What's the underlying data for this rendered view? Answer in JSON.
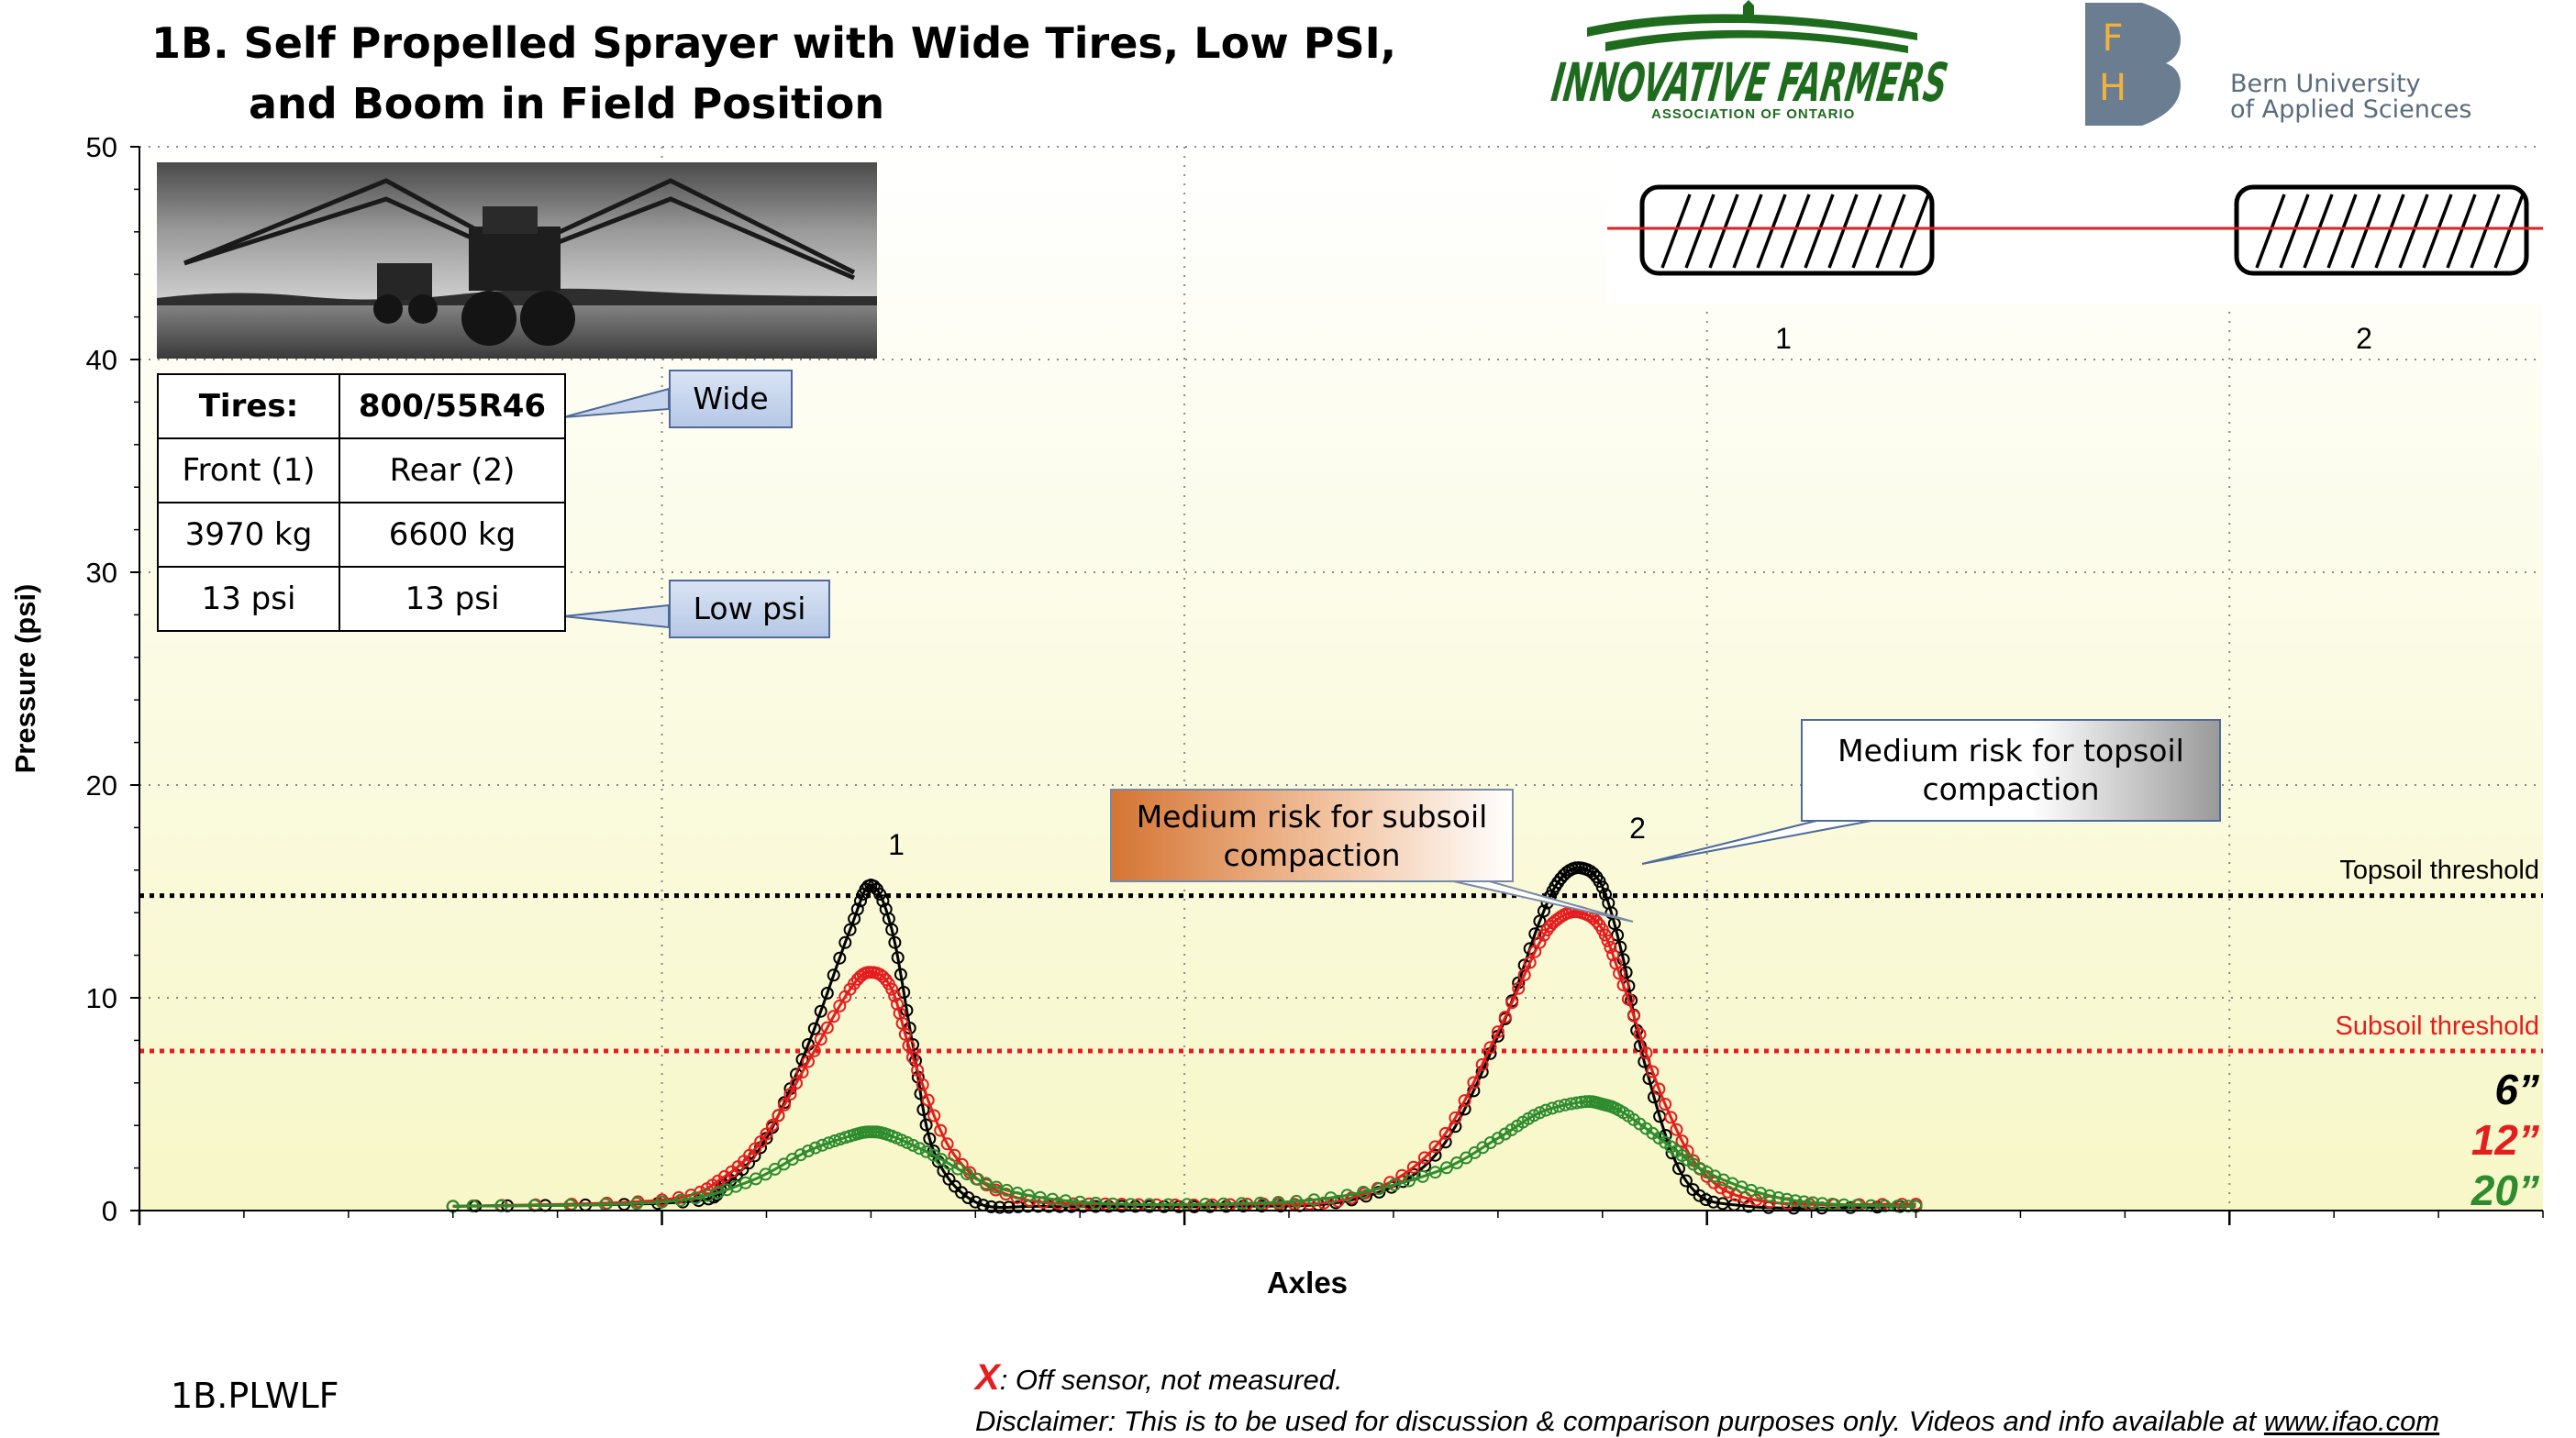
{
  "title": {
    "line1": "1B. Self Propelled Sprayer with Wide Tires, Low PSI,",
    "line2": "and Boom in Field Position"
  },
  "logos": {
    "ifao_name": "INNOVATIVE FARMERS",
    "ifao_sub": "ASSOCIATION OF ONTARIO",
    "fh_letters": [
      "F",
      "H"
    ],
    "fh_line1": "Bern University",
    "fh_line2": "of Applied Sciences"
  },
  "tire_table": {
    "label": "Tires:",
    "size": "800/55R46",
    "front": "Front (1)",
    "rear": "Rear (2)",
    "front_load": "3970 kg",
    "rear_load": "6600 kg",
    "front_psi": "13 psi",
    "rear_psi": "13 psi"
  },
  "callouts": {
    "wide": "Wide",
    "low_psi": "Low psi",
    "subsoil_risk": "Medium risk for subsoil compaction",
    "topsoil_risk": "Medium risk for topsoil compaction"
  },
  "chart_data": {
    "type": "line",
    "title": "1B. Self Propelled Sprayer with Wide Tires, Low PSI, and Boom in Field Position",
    "xlabel": "Axles",
    "ylabel": "Pressure (psi)",
    "ylim": [
      0,
      50
    ],
    "yticks": [
      0,
      10,
      20,
      30,
      40,
      50
    ],
    "grid": true,
    "axle_labels": [
      "1",
      "2"
    ],
    "series": [
      {
        "name": "6”",
        "color": "#000000",
        "peaks": [
          15.3,
          16.1
        ],
        "baseline": 0.2,
        "x": [
          -20,
          2,
          6,
          10,
          14,
          18,
          20,
          22,
          24,
          26,
          30,
          36,
          44,
          54,
          66,
          74,
          80,
          84,
          86,
          88,
          90,
          92,
          94,
          98,
          104,
          120
        ],
        "values": [
          0.2,
          0.4,
          1.2,
          3.4,
          7.8,
          13.2,
          15.3,
          13.2,
          7.8,
          2.8,
          0.4,
          0.2,
          0.2,
          0.2,
          0.5,
          2.6,
          8.2,
          13.6,
          15.6,
          16.1,
          15.2,
          11.8,
          7.0,
          1.4,
          0.2,
          0.2
        ]
      },
      {
        "name": "12”",
        "color": "#e41e1e",
        "peaks": [
          11.2,
          14.0
        ],
        "baseline": 0.2,
        "x": [
          -20,
          0,
          6,
          10,
          14,
          18,
          20,
          22,
          24,
          28,
          34,
          44,
          56,
          66,
          74,
          80,
          84,
          86,
          88,
          90,
          92,
          96,
          100,
          106,
          120
        ],
        "values": [
          0.2,
          0.5,
          1.6,
          3.6,
          7.0,
          10.4,
          11.2,
          10.4,
          7.2,
          2.6,
          0.6,
          0.3,
          0.3,
          0.6,
          3.0,
          8.4,
          12.6,
          13.8,
          14.0,
          13.2,
          10.6,
          5.0,
          1.6,
          0.4,
          0.3
        ]
      },
      {
        "name": "20”",
        "color": "#2e8b2e",
        "peaks": [
          3.7,
          5.1
        ],
        "baseline": 0.2,
        "x": [
          -20,
          0,
          8,
          14,
          18,
          20,
          22,
          26,
          32,
          40,
          52,
          64,
          74,
          80,
          84,
          88,
          90,
          92,
          96,
          100,
          106,
          112,
          120
        ],
        "values": [
          0.2,
          0.4,
          1.3,
          2.8,
          3.5,
          3.7,
          3.5,
          2.6,
          1.1,
          0.4,
          0.3,
          0.6,
          1.8,
          3.4,
          4.6,
          5.1,
          5.0,
          4.6,
          3.2,
          1.8,
          0.7,
          0.3,
          0.2
        ]
      }
    ],
    "thresholds": [
      {
        "name": "Topsoil threshold",
        "value": 14.8,
        "color": "#000000"
      },
      {
        "name": "Subsoil threshold",
        "value": 7.5,
        "color": "#e41e1e"
      }
    ],
    "legend": [
      "6”",
      "12”",
      "20”"
    ],
    "legend_placement": "right"
  },
  "notes": {
    "marker": "X",
    "marker_text": ": Off sensor, not measured.",
    "disclaimer": "Disclaimer: This is to be used for discussion & comparison purposes only. Videos and info available at ",
    "url": "www.ifao.com",
    "code": "1B.PLWLF"
  },
  "colors": {
    "plot_bg_top": "#ffffff",
    "plot_bg_bottom": "#f7f7c8",
    "black_series": "#000000",
    "red_series": "#e41e1e",
    "green_series": "#2e8b2e",
    "ifao_green": "#1e6b1e",
    "fh_blue": "#6b7d90"
  }
}
